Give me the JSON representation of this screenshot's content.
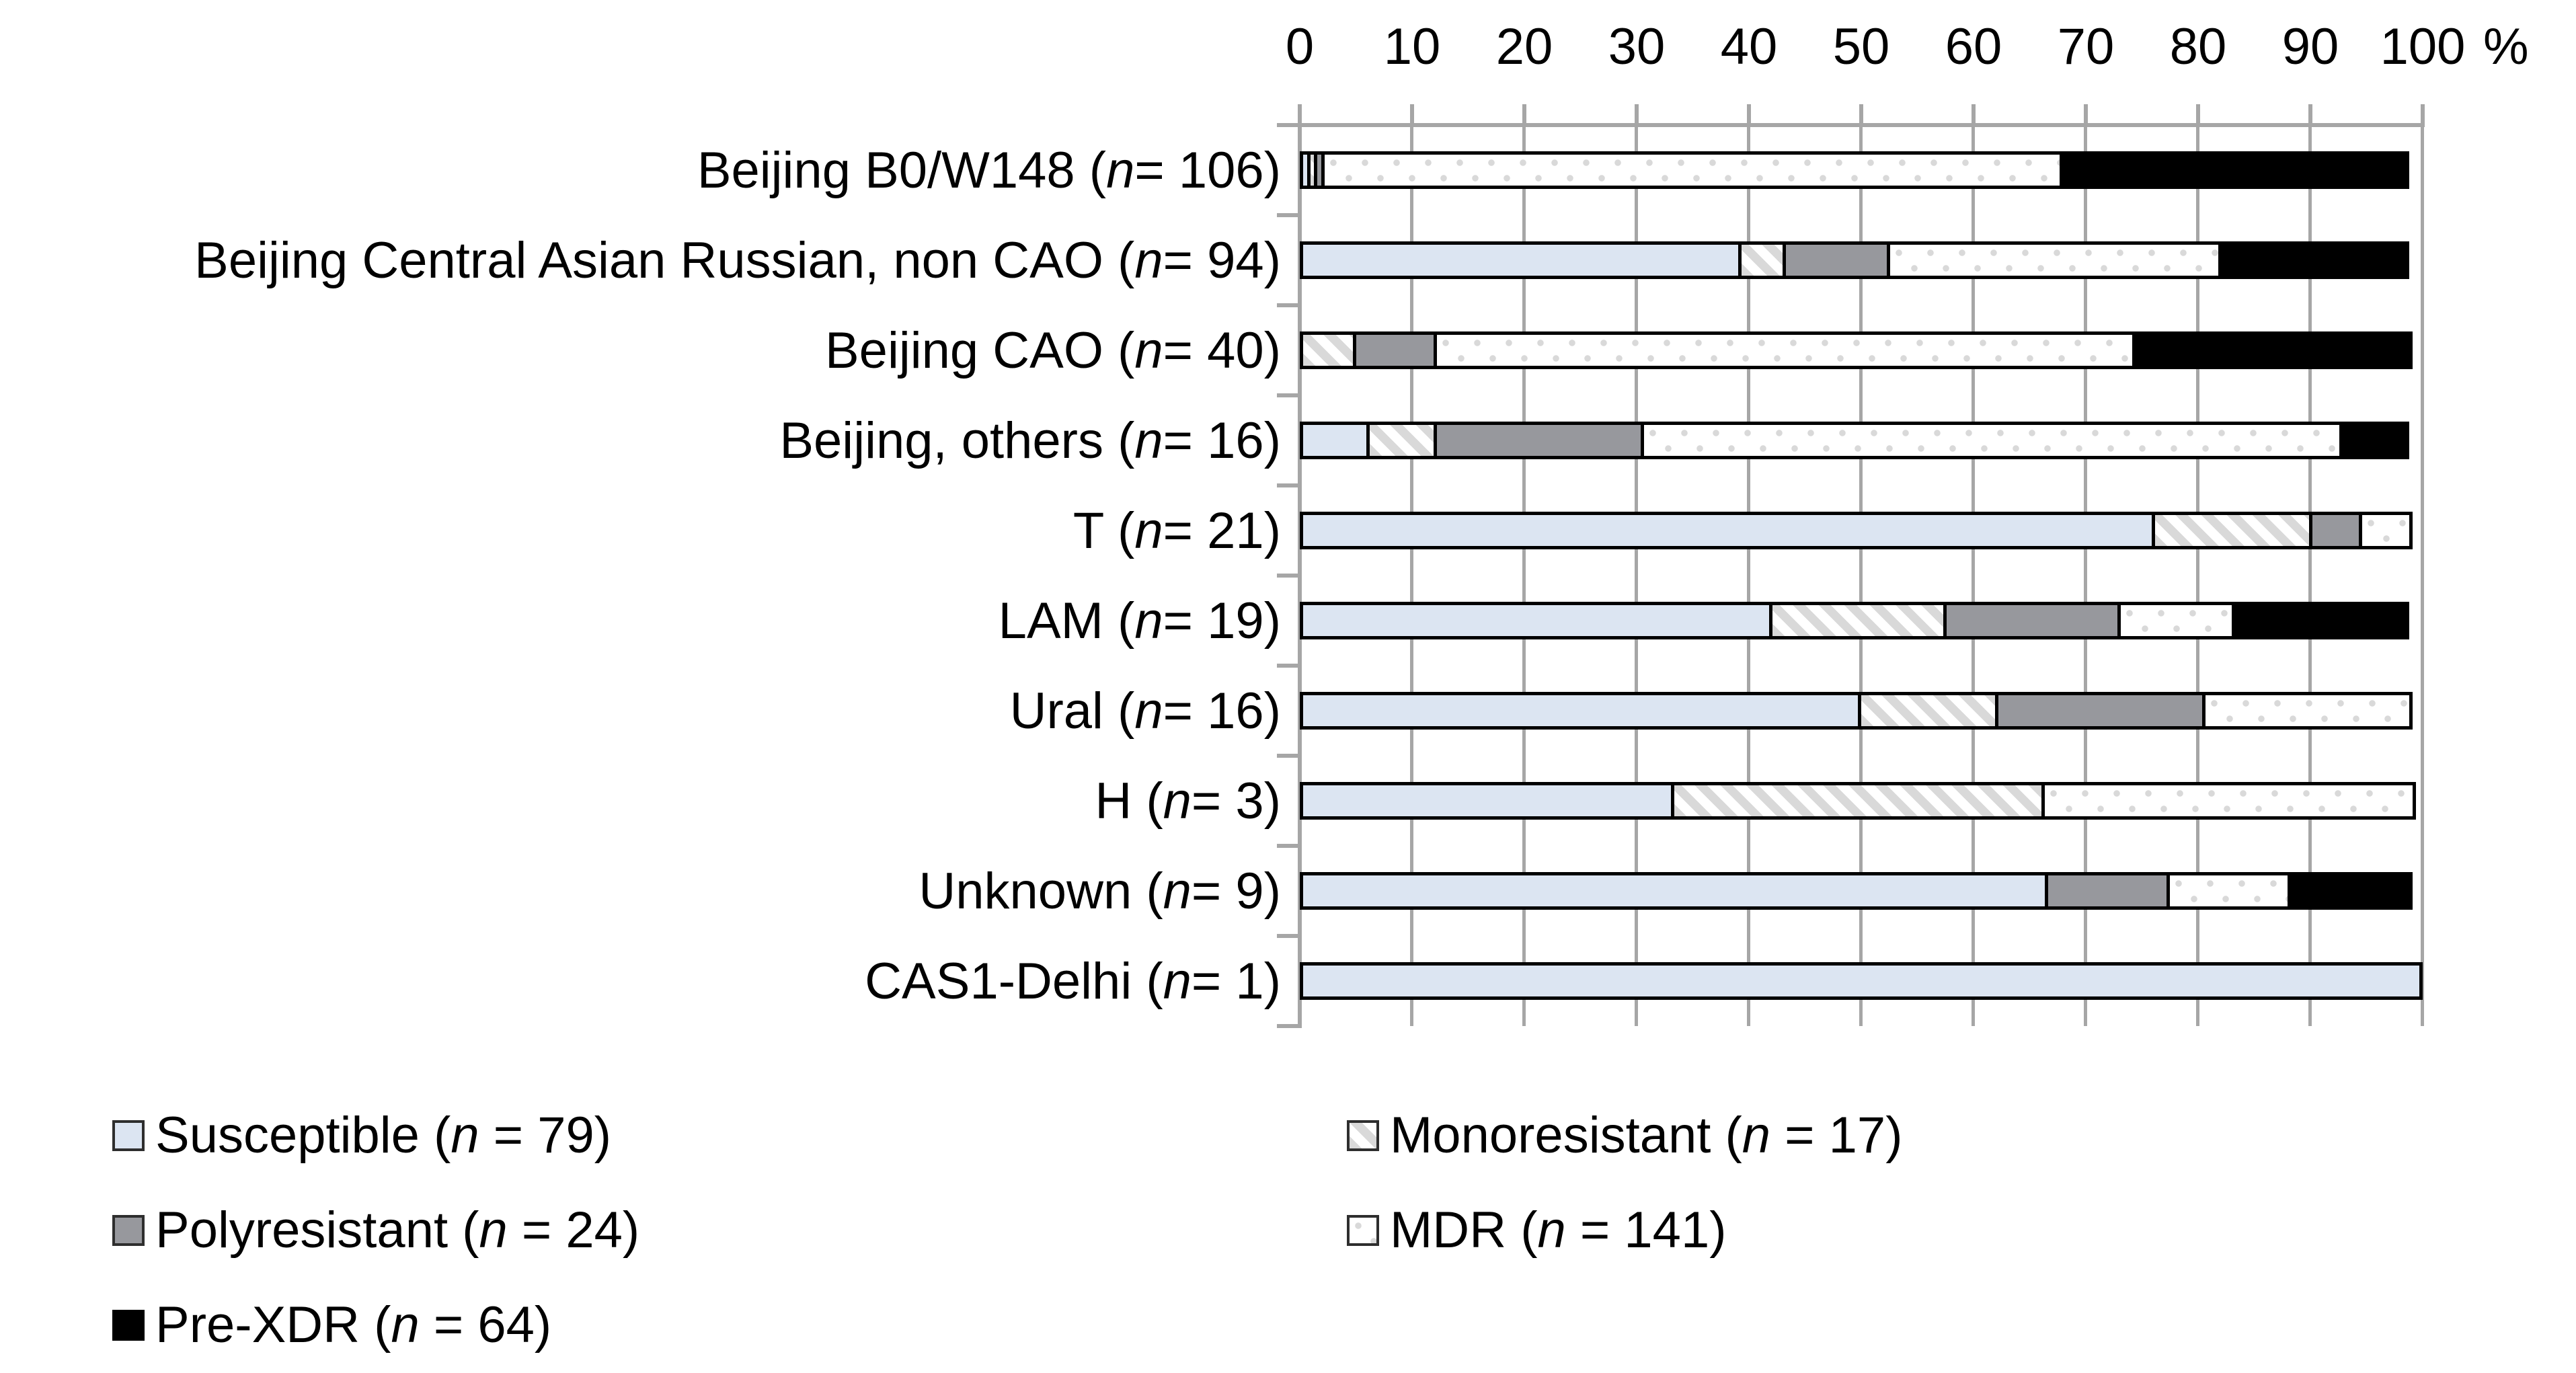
{
  "chart_data": {
    "type": "bar",
    "subtype": "stacked-horizontal-percent",
    "title": "",
    "xlabel": "%",
    "ylabel": "",
    "xlim": [
      0,
      100
    ],
    "xticks": [
      0,
      10,
      20,
      30,
      40,
      50,
      60,
      70,
      80,
      90,
      100
    ],
    "grid": true,
    "legend_position": "bottom-two-columns",
    "categories": [
      {
        "label": "Beijing B0/W148 (n = 106)",
        "n": 106
      },
      {
        "label": "Beijing Central Asian Russian, non CAO (n = 94)",
        "n": 94
      },
      {
        "label": "Beijing CAO (n = 40)",
        "n": 40
      },
      {
        "label": "Beijing, others (n = 16)",
        "n": 16
      },
      {
        "label": "T (n = 21)",
        "n": 21
      },
      {
        "label": "LAM (n = 19)",
        "n": 19
      },
      {
        "label": "Ural (n = 16)",
        "n": 16
      },
      {
        "label": "H (n = 3)",
        "n": 3
      },
      {
        "label": "Unknown (n = 9)",
        "n": 9
      },
      {
        "label": "CAS1-Delhi (n = 1)",
        "n": 1
      }
    ],
    "series": [
      {
        "name": "Susceptible",
        "legend_label": "Susceptible (n = 79)",
        "n": 79,
        "pattern": "solid-light-blue",
        "values_pct": [
          0.94,
          39.36,
          0,
          6.25,
          76.19,
          42.11,
          50.0,
          33.33,
          66.67,
          100.0
        ]
      },
      {
        "name": "Monoresistant",
        "legend_label": "Monoresistant (n = 17)",
        "n": 17,
        "pattern": "diagonal-hatch",
        "values_pct": [
          0.94,
          4.26,
          5.0,
          6.25,
          14.29,
          15.79,
          12.5,
          33.33,
          0,
          0
        ]
      },
      {
        "name": "Polyresistant",
        "legend_label": "Polyresistant (n = 24)",
        "n": 24,
        "pattern": "solid-gray",
        "values_pct": [
          0.94,
          9.57,
          7.5,
          18.75,
          4.76,
          15.79,
          18.75,
          0,
          11.11,
          0
        ]
      },
      {
        "name": "MDR",
        "legend_label": "MDR (n = 141)",
        "n": 141,
        "pattern": "dotted-white",
        "values_pct": [
          66.04,
          29.79,
          62.5,
          62.5,
          4.76,
          10.53,
          18.75,
          33.34,
          11.11,
          0
        ]
      },
      {
        "name": "Pre-XDR",
        "legend_label": "Pre-XDR (n = 64)",
        "n": 64,
        "pattern": "solid-black",
        "values_pct": [
          31.13,
          17.02,
          25.0,
          6.25,
          0,
          15.79,
          0,
          0,
          11.11,
          0
        ]
      }
    ],
    "colors": {
      "susceptible_fill": "#dce5f2",
      "polyresistant_fill": "#97989d",
      "pattern_gray": "#d9d9d9",
      "pre_xdr_fill": "#000000",
      "segment_border": "#000000",
      "grid_and_axis": "#a6a6a6",
      "text": "#000000"
    },
    "legend_columns": {
      "col1": [
        "Susceptible",
        "Polyresistant",
        "Pre-XDR"
      ],
      "col2": [
        "Monoresistant",
        "MDR"
      ]
    }
  }
}
